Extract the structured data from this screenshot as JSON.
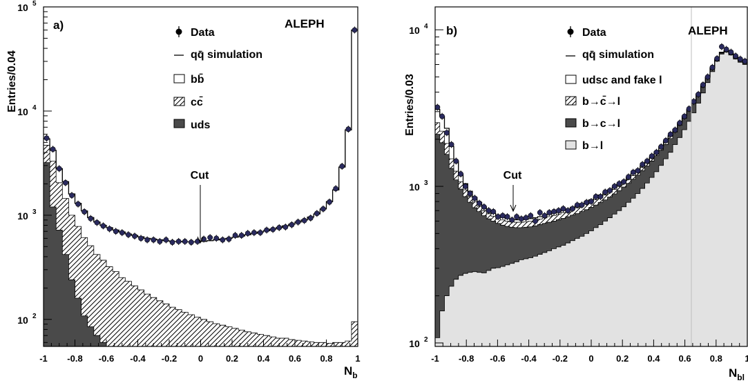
{
  "chart_data": [
    {
      "type": "histogram",
      "panel_label": "a)",
      "experiment": "ALEPH",
      "xlabel": "N",
      "xlabel_sub": "b",
      "ylabel": "Entries/0.04",
      "y_scale": "log",
      "xlim": [
        -1,
        1
      ],
      "ylim": [
        55,
        100000
      ],
      "bin_width": 0.04,
      "x_ticks": [
        "-1",
        "-0.8",
        "-0.6",
        "-0.4",
        "-0.2",
        "0",
        "0.2",
        "0.4",
        "0.6",
        "0.8",
        "1"
      ],
      "y_ticks": [
        {
          "value": 100,
          "base": "10",
          "exp": "2"
        },
        {
          "value": 1000,
          "base": "10",
          "exp": "3"
        },
        {
          "value": 10000,
          "base": "10",
          "exp": "4"
        },
        {
          "value": 100000,
          "base": "10",
          "exp": "5"
        }
      ],
      "legend_position": "top-center",
      "legend": [
        {
          "key": "data",
          "label": "Data",
          "style": "marker"
        },
        {
          "key": "sim",
          "label": "qq̄ simulation",
          "style": "line"
        },
        {
          "key": "bb",
          "label": "bb̄",
          "style": "open"
        },
        {
          "key": "cc",
          "label": "cc̄",
          "style": "hatch"
        },
        {
          "key": "uds",
          "label": "uds",
          "style": "dark"
        }
      ],
      "annotation": {
        "text": "Cut",
        "x": 0
      },
      "series": [
        {
          "name": "uds",
          "values": [
            3200,
            1200,
            720,
            420,
            240,
            160,
            108,
            85,
            70,
            60,
            55,
            55,
            55,
            55,
            55,
            55,
            55,
            55,
            55,
            55,
            55,
            55,
            55,
            55,
            55,
            55,
            55,
            55,
            55,
            55,
            55,
            55,
            55,
            55,
            55,
            55,
            55,
            55,
            55,
            55,
            55,
            55,
            55,
            55,
            55,
            55,
            55,
            55,
            55,
            55
          ]
        },
        {
          "name": "cc̄",
          "values": [
            4700,
            3300,
            2050,
            1450,
            1000,
            780,
            610,
            510,
            420,
            370,
            320,
            288,
            252,
            232,
            210,
            192,
            175,
            162,
            151,
            141,
            131,
            124,
            117,
            111,
            105,
            100,
            95,
            91,
            88,
            85,
            82,
            79,
            76,
            74,
            72,
            70,
            68,
            66,
            66,
            64,
            63,
            62,
            61,
            60,
            60,
            59,
            60,
            60,
            62,
            95
          ]
        },
        {
          "name": "qq̄ simulation",
          "values": [
            5400,
            4200,
            2800,
            2100,
            1600,
            1300,
            1100,
            950,
            860,
            800,
            760,
            720,
            690,
            660,
            640,
            620,
            600,
            590,
            580,
            570,
            560,
            560,
            555,
            555,
            555,
            560,
            570,
            580,
            590,
            600,
            615,
            630,
            650,
            670,
            690,
            710,
            735,
            760,
            790,
            820,
            860,
            900,
            960,
            1030,
            1150,
            1350,
            1750,
            2900,
            6600,
            60000
          ]
        },
        {
          "name": "Data",
          "values": [
            5500,
            4300,
            2800,
            2050,
            1550,
            1280,
            1080,
            930,
            850,
            790,
            740,
            700,
            680,
            650,
            630,
            600,
            580,
            580,
            560,
            580,
            550,
            560,
            560,
            550,
            560,
            590,
            610,
            600,
            580,
            590,
            640,
            640,
            670,
            680,
            680,
            720,
            730,
            760,
            770,
            810,
            860,
            890,
            940,
            1040,
            1150,
            1340,
            1800,
            2950,
            6700,
            60000
          ]
        }
      ]
    },
    {
      "type": "histogram",
      "panel_label": "b)",
      "experiment": "ALEPH",
      "xlabel": "N",
      "xlabel_sub": "bl",
      "ylabel": "Entries/0.03",
      "y_scale": "log",
      "xlim": [
        -1,
        1
      ],
      "ylim": [
        95,
        14000
      ],
      "bin_width": 0.03,
      "x_ticks": [
        "-1",
        "-0.8",
        "-0.6",
        "-0.4",
        "-0.2",
        "0",
        "0.2",
        "0.4",
        "0.6",
        "0.8",
        "1"
      ],
      "y_ticks": [
        {
          "value": 100,
          "base": "10",
          "exp": "2"
        },
        {
          "value": 1000,
          "base": "10",
          "exp": "3"
        },
        {
          "value": 10000,
          "base": "10",
          "exp": "4"
        }
      ],
      "legend_position": "top-center",
      "legend": [
        {
          "key": "data",
          "label": "Data",
          "style": "marker"
        },
        {
          "key": "sim",
          "label": "qq̄ simulation",
          "style": "line"
        },
        {
          "key": "udsc",
          "label": "udsc and fake l",
          "style": "open"
        },
        {
          "key": "bcbar",
          "label": "b→c̄→l",
          "style": "hatch"
        },
        {
          "key": "bc",
          "label": "b→c→l",
          "style": "dark"
        },
        {
          "key": "bl",
          "label": "b→l",
          "style": "light"
        }
      ],
      "annotation": {
        "text": "Cut",
        "x": -0.5
      },
      "series": [
        {
          "name": "b→l",
          "values": [
            108,
            160,
            200,
            230,
            255,
            270,
            278,
            282,
            285,
            282,
            280,
            290,
            300,
            302,
            308,
            315,
            322,
            330,
            340,
            345,
            350,
            358,
            368,
            378,
            388,
            400,
            410,
            420,
            435,
            450,
            465,
            480,
            500,
            520,
            545,
            570,
            600,
            630,
            665,
            700,
            740,
            790,
            840,
            900,
            970,
            1050,
            1140,
            1240,
            1360,
            1500,
            1650,
            1850,
            2050,
            2300,
            2600,
            2950,
            3400,
            3950,
            4600,
            5400,
            6300,
            7000,
            7200,
            6900,
            6500,
            6200,
            6000
          ]
        },
        {
          "name": "b→c→l",
          "values": [
            2150,
            1900,
            1600,
            1300,
            1100,
            960,
            860,
            790,
            730,
            690,
            650,
            620,
            600,
            580,
            565,
            555,
            548,
            545,
            545,
            548,
            552,
            560,
            570,
            580,
            590,
            600,
            612,
            625,
            640,
            655,
            670,
            690,
            710,
            735,
            760,
            790,
            820,
            855,
            895,
            940,
            990,
            1045,
            1110,
            1180,
            1260,
            1350,
            1450,
            1570,
            1700,
            1850,
            2020,
            2220,
            2450,
            2720,
            3020,
            3380,
            3800,
            4300,
            4900,
            5600,
            6400,
            7100,
            7300,
            7000,
            6600,
            6300,
            6100
          ]
        },
        {
          "name": "b→c̄→l",
          "values": [
            2550,
            2250,
            1880,
            1500,
            1250,
            1070,
            950,
            860,
            795,
            745,
            700,
            668,
            645,
            625,
            610,
            600,
            592,
            590,
            590,
            594,
            600,
            608,
            618,
            628,
            640,
            652,
            665,
            680,
            695,
            712,
            730,
            750,
            772,
            795,
            822,
            850,
            882,
            918,
            957,
            1000,
            1050,
            1105,
            1170,
            1240,
            1320,
            1410,
            1510,
            1630,
            1760,
            1910,
            2080,
            2280,
            2510,
            2780,
            3080,
            3440,
            3860,
            4360,
            4960,
            5660,
            6460,
            7150,
            7350,
            7050,
            6650,
            6350,
            6150
          ]
        },
        {
          "name": "qq̄ simulation",
          "values": [
            3100,
            2800,
            2350,
            1800,
            1450,
            1200,
            1040,
            930,
            850,
            790,
            740,
            700,
            672,
            650,
            633,
            622,
            614,
            612,
            612,
            616,
            622,
            630,
            640,
            650,
            662,
            675,
            688,
            702,
            718,
            735,
            754,
            775,
            798,
            822,
            850,
            880,
            912,
            948,
            988,
            1032,
            1082,
            1138,
            1202,
            1272,
            1352,
            1442,
            1542,
            1662,
            1792,
            1942,
            2112,
            2312,
            2542,
            2812,
            3112,
            3472,
            3892,
            4392,
            4992,
            5692,
            6492,
            7180,
            7380,
            7080,
            6680,
            6380,
            6180
          ]
        },
        {
          "name": "Data",
          "values": [
            3200,
            2800,
            2200,
            1850,
            1450,
            1200,
            1000,
            900,
            840,
            780,
            740,
            700,
            690,
            640,
            650,
            640,
            610,
            640,
            620,
            630,
            650,
            600,
            680,
            650,
            680,
            690,
            700,
            720,
            700,
            720,
            760,
            760,
            790,
            800,
            860,
            860,
            920,
            940,
            1000,
            1040,
            1070,
            1150,
            1230,
            1260,
            1380,
            1450,
            1560,
            1650,
            1790,
            1960,
            2150,
            2290,
            2540,
            2800,
            3130,
            3480,
            3870,
            4450,
            5000,
            5750,
            6550,
            7800,
            7500,
            7200,
            6800,
            6500,
            6300
          ]
        }
      ]
    }
  ]
}
